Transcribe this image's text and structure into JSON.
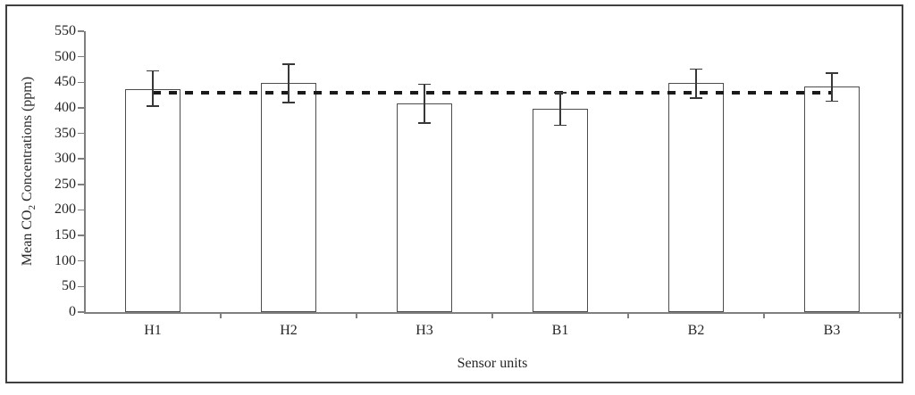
{
  "chart_data": {
    "type": "bar",
    "title": "",
    "xlabel": "Sensor units",
    "ylabel": "Mean CO2 Concentrations (ppm)",
    "ylabel_parts": {
      "prefix": "Mean CO",
      "subscript": "2",
      "suffix": " Concentrations (ppm)"
    },
    "categories": [
      "H1",
      "H2",
      "H3",
      "B1",
      "B2",
      "B3"
    ],
    "values": [
      437,
      448,
      408,
      398,
      449,
      441
    ],
    "error_upper": [
      472,
      485,
      446,
      430,
      476,
      468
    ],
    "error_lower": [
      403,
      410,
      370,
      366,
      419,
      413
    ],
    "reference_line": {
      "value": 430,
      "style": "dashed",
      "meaning": "mean of all bars",
      "color": "#1a1a1a"
    },
    "ylim": [
      0,
      550
    ],
    "ytick_interval": 50,
    "yticks": [
      550,
      500,
      450,
      400,
      350,
      300,
      250,
      200,
      150,
      100,
      50,
      0
    ],
    "grid": "off",
    "legend": "none",
    "colors": {
      "bar_fill": "#ffffff",
      "bar_border": "#4d4d4d",
      "axis": "#7f7f7f",
      "error_bar": "#383838",
      "text": "#262626",
      "frame": "#3f3f3f"
    }
  }
}
